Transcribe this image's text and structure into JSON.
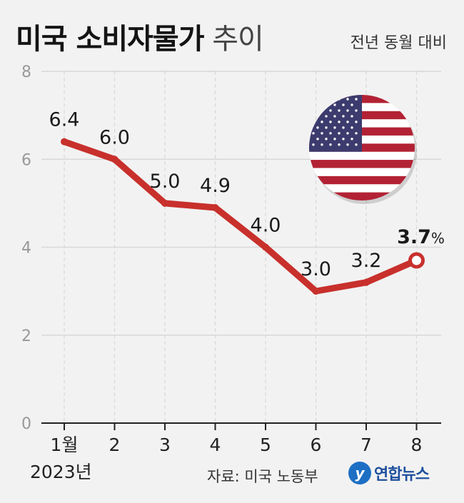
{
  "title": {
    "bold": "미국 소비자물가",
    "light": "추이"
  },
  "subtitle": "전년 동월 대비",
  "source": "자료: 미국 노동부",
  "logo": {
    "mark": "y",
    "text": "연합뉴스"
  },
  "colors": {
    "line": "#c8302c",
    "grid": "#d8d8d8",
    "axis": "#222222",
    "tick": "#999999"
  },
  "icons": {
    "flag": "us-flag-icon"
  },
  "chart_data": {
    "type": "line",
    "categories": [
      "1월",
      "2",
      "3",
      "4",
      "5",
      "6",
      "7",
      "8"
    ],
    "year_label": "2023년",
    "values": [
      6.4,
      6.0,
      5.0,
      4.9,
      4.0,
      3.0,
      3.2,
      3.7
    ],
    "point_labels": [
      "6.4",
      "6.0",
      "5.0",
      "4.9",
      "4.0",
      "3.0",
      "3.2",
      "3.7"
    ],
    "last_unit": "%",
    "yticks": [
      0,
      2,
      4,
      6,
      8
    ],
    "ylim": [
      0,
      8
    ],
    "grid": true
  }
}
